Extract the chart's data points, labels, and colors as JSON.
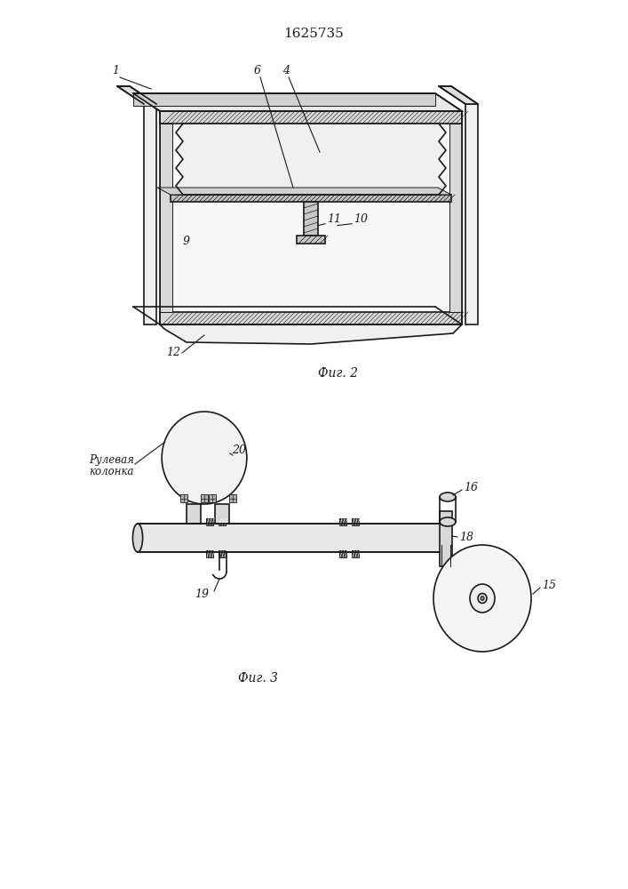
{
  "title": "1625735",
  "fig2_caption": "Фиг. 2",
  "fig3_caption": "Фиг. 3",
  "bg_color": "#ffffff",
  "line_color": "#1a1a1a",
  "font_size_title": 11,
  "font_size_labels": 9,
  "font_size_caption": 10
}
